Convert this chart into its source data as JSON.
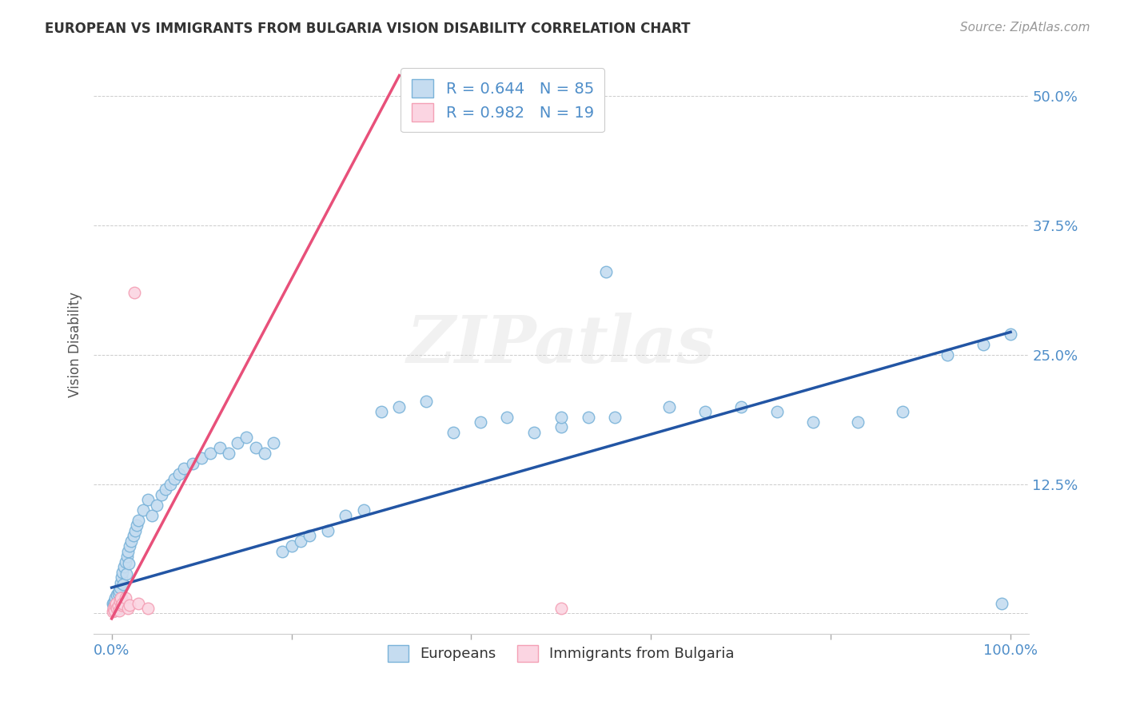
{
  "title": "EUROPEAN VS IMMIGRANTS FROM BULGARIA VISION DISABILITY CORRELATION CHART",
  "source": "Source: ZipAtlas.com",
  "ylabel": "Vision Disability",
  "xlim": [
    -0.02,
    1.02
  ],
  "ylim": [
    -0.02,
    0.54
  ],
  "yticks": [
    0.0,
    0.125,
    0.25,
    0.375,
    0.5
  ],
  "ytick_labels": [
    "",
    "12.5%",
    "25.0%",
    "37.5%",
    "50.0%"
  ],
  "watermark": "ZIPatlas",
  "blue_color": "#7ab3d9",
  "blue_fill": "#c5dcf0",
  "pink_color": "#f4a0b5",
  "pink_fill": "#fbd5e2",
  "line_blue": "#2255a4",
  "line_pink": "#e8507a",
  "legend_R_blue": "0.644",
  "legend_N_blue": "85",
  "legend_R_pink": "0.982",
  "legend_N_pink": "19",
  "tick_color": "#4f8ec9",
  "blue_scatter_x": [
    0.001,
    0.002,
    0.002,
    0.003,
    0.003,
    0.004,
    0.004,
    0.005,
    0.005,
    0.006,
    0.006,
    0.007,
    0.007,
    0.008,
    0.008,
    0.009,
    0.009,
    0.01,
    0.01,
    0.011,
    0.011,
    0.012,
    0.013,
    0.014,
    0.015,
    0.016,
    0.017,
    0.018,
    0.019,
    0.02,
    0.022,
    0.024,
    0.026,
    0.028,
    0.03,
    0.035,
    0.04,
    0.045,
    0.05,
    0.055,
    0.06,
    0.065,
    0.07,
    0.075,
    0.08,
    0.09,
    0.1,
    0.11,
    0.12,
    0.13,
    0.14,
    0.15,
    0.16,
    0.17,
    0.18,
    0.19,
    0.2,
    0.21,
    0.22,
    0.24,
    0.26,
    0.28,
    0.3,
    0.32,
    0.35,
    0.38,
    0.41,
    0.44,
    0.47,
    0.5,
    0.53,
    0.56,
    0.62,
    0.66,
    0.7,
    0.74,
    0.78,
    0.83,
    0.88,
    0.93,
    0.97,
    0.99,
    1.0,
    0.5,
    0.55
  ],
  "blue_scatter_y": [
    0.01,
    0.005,
    0.008,
    0.003,
    0.012,
    0.007,
    0.015,
    0.004,
    0.01,
    0.006,
    0.018,
    0.008,
    0.02,
    0.005,
    0.022,
    0.01,
    0.025,
    0.007,
    0.03,
    0.015,
    0.035,
    0.04,
    0.028,
    0.045,
    0.05,
    0.038,
    0.055,
    0.06,
    0.048,
    0.065,
    0.07,
    0.075,
    0.08,
    0.085,
    0.09,
    0.1,
    0.11,
    0.095,
    0.105,
    0.115,
    0.12,
    0.125,
    0.13,
    0.135,
    0.14,
    0.145,
    0.15,
    0.155,
    0.16,
    0.155,
    0.165,
    0.17,
    0.16,
    0.155,
    0.165,
    0.06,
    0.065,
    0.07,
    0.075,
    0.08,
    0.095,
    0.1,
    0.195,
    0.2,
    0.205,
    0.175,
    0.185,
    0.19,
    0.175,
    0.18,
    0.19,
    0.19,
    0.2,
    0.195,
    0.2,
    0.195,
    0.185,
    0.185,
    0.195,
    0.25,
    0.26,
    0.01,
    0.27,
    0.19,
    0.33
  ],
  "pink_scatter_x": [
    0.001,
    0.002,
    0.003,
    0.004,
    0.005,
    0.006,
    0.007,
    0.008,
    0.009,
    0.01,
    0.011,
    0.012,
    0.015,
    0.018,
    0.02,
    0.025,
    0.03,
    0.04,
    0.5
  ],
  "pink_scatter_y": [
    0.002,
    0.005,
    0.003,
    0.008,
    0.01,
    0.005,
    0.007,
    0.003,
    0.012,
    0.015,
    0.008,
    0.01,
    0.015,
    0.005,
    0.008,
    0.31,
    0.01,
    0.005,
    0.005
  ],
  "blue_line_x": [
    0.0,
    1.0
  ],
  "blue_line_y": [
    0.025,
    0.272
  ],
  "pink_line_x": [
    0.0,
    0.32
  ],
  "pink_line_y": [
    -0.005,
    0.52
  ]
}
